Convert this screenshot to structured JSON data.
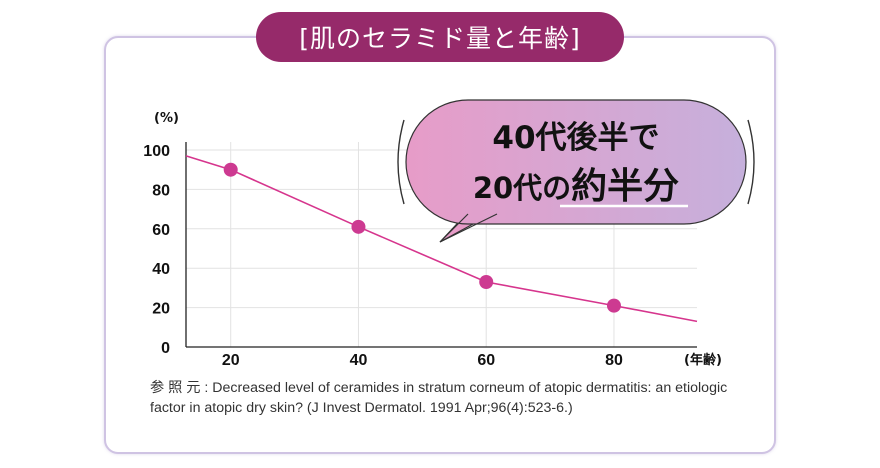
{
  "title": "[肌のセラミド量と年齢]",
  "callout": {
    "line1": "40代後半で",
    "line2_prefix": "20代の",
    "line2_emphasis": "約半分"
  },
  "source_note": "参 照 元 : Decreased level of ceramides in stratum corneum of atopic dermatitis: an etiologic factor in atopic dry skin? (J Invest Dermatol. 1991 Apr;96(4):523-6.)",
  "colors": {
    "title_bg": "#962a6a",
    "line": "#d6358d",
    "marker": "#cd3a91",
    "callout_gradient": [
      "#e79cc8",
      "#c6b0dc"
    ],
    "card_border": "#cfc3e3"
  },
  "chart_data": {
    "type": "line",
    "title": "肌のセラミド量と年齢",
    "xlabel": "(年齢)",
    "ylabel": "(%)",
    "xlim": [
      13,
      93
    ],
    "ylim": [
      0,
      100
    ],
    "xticks": [
      20,
      40,
      60,
      80
    ],
    "yticks": [
      0,
      20,
      40,
      60,
      80,
      100
    ],
    "grid": true,
    "series": [
      {
        "x": [
          13,
          20,
          40,
          60,
          80,
          93
        ],
        "y": [
          97,
          90,
          61,
          33,
          21,
          13
        ],
        "markers_at_x": [
          20,
          40,
          60,
          80
        ]
      }
    ]
  }
}
